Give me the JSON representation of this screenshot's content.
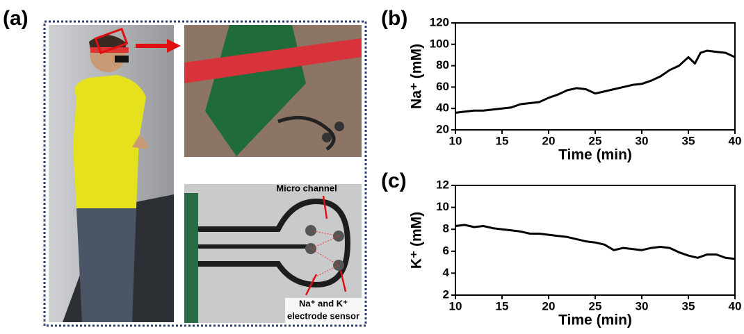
{
  "panel_a": {
    "label": "(a)",
    "annotations": [
      "Micro channel",
      "Na⁺ and K⁺",
      "electrode sensor"
    ]
  },
  "chart_data": [
    {
      "type": "line",
      "panel_label": "(b)",
      "x_label": "Time (min)",
      "y_label": "Na⁺ (mM)",
      "color": "#000000",
      "x": [
        10,
        11,
        12,
        13,
        14,
        15,
        16,
        17,
        18,
        19,
        20,
        21,
        22,
        23,
        24,
        25,
        26,
        27,
        28,
        29,
        30,
        31,
        32,
        33,
        34,
        35,
        35.7,
        36.3,
        37,
        38,
        39,
        40
      ],
      "values": [
        36,
        37,
        38,
        38,
        39,
        40,
        41,
        44,
        45,
        46,
        50,
        53,
        57,
        59,
        58,
        54,
        56,
        58,
        60,
        62,
        63,
        66,
        70,
        76,
        80,
        88,
        82,
        92,
        94,
        93,
        92,
        88
      ],
      "xlim": [
        10,
        40
      ],
      "ylim": [
        20,
        120
      ],
      "xticks": [
        10,
        15,
        20,
        25,
        30,
        35,
        40
      ],
      "yticks": [
        20,
        40,
        60,
        80,
        100,
        120
      ]
    },
    {
      "type": "line",
      "panel_label": "(c)",
      "x_label": "Time (min)",
      "y_label": "K⁺ (mM)",
      "color": "#000000",
      "x": [
        10,
        11,
        12,
        13,
        14,
        15,
        16,
        17,
        18,
        19,
        20,
        21,
        22,
        23,
        24,
        25,
        26,
        27,
        28,
        29,
        30,
        31,
        32,
        33,
        34,
        35,
        36,
        37,
        38,
        39,
        40
      ],
      "values": [
        8.3,
        8.4,
        8.2,
        8.3,
        8.1,
        8.0,
        7.9,
        7.8,
        7.6,
        7.6,
        7.5,
        7.4,
        7.3,
        7.1,
        6.9,
        6.8,
        6.6,
        6.1,
        6.3,
        6.2,
        6.1,
        6.3,
        6.4,
        6.3,
        5.9,
        5.6,
        5.4,
        5.7,
        5.7,
        5.4,
        5.3
      ],
      "xlim": [
        10,
        40
      ],
      "ylim": [
        2,
        12
      ],
      "xticks": [
        10,
        15,
        20,
        25,
        30,
        35,
        40
      ],
      "yticks": [
        2,
        4,
        6,
        8,
        10,
        12
      ]
    }
  ]
}
